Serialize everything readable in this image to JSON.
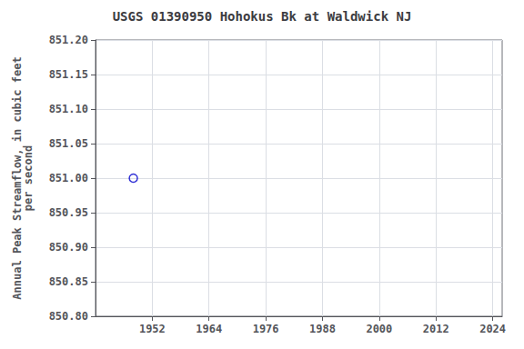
{
  "chart_data": {
    "type": "scatter",
    "title": "USGS 01390950 Hohokus Bk at Waldwick NJ",
    "ylabel": "Annual Peak Streamflow, in cubic feet\nper second",
    "x": [
      1948
    ],
    "values": [
      851.0
    ],
    "color": "#0000cc",
    "marker": "circle",
    "xlim": [
      1940,
      2026
    ],
    "ylim": [
      850.8,
      851.2
    ],
    "xticks": [
      1952,
      1964,
      1976,
      1988,
      2000,
      2012,
      2024
    ],
    "yticks": [
      {
        "value": 850.8,
        "label": "850.80"
      },
      850.85,
      {
        "value": 850.9,
        "label": "850.90"
      },
      850.95,
      {
        "value": 851.0,
        "label": "851.00"
      },
      851.05,
      {
        "value": 851.1,
        "label": "851.10"
      },
      851.15,
      {
        "value": 851.2,
        "label": "851.20"
      }
    ],
    "grid": true
  }
}
